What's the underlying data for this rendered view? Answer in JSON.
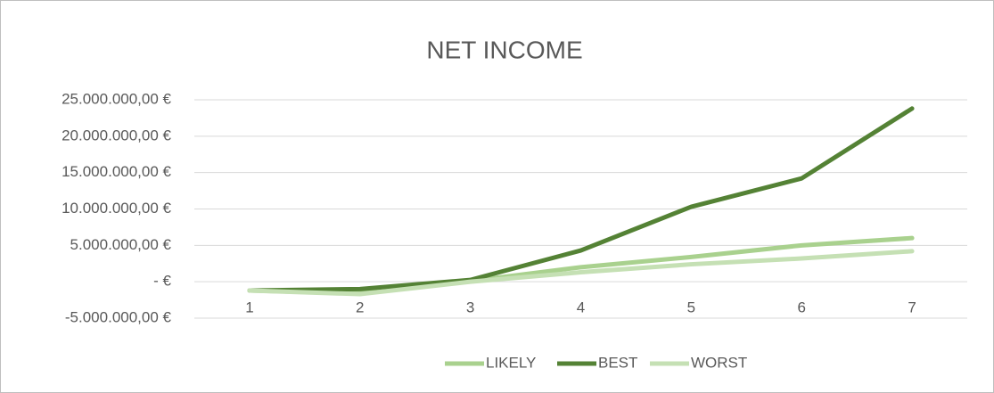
{
  "chart_data": {
    "type": "line",
    "title": "NET INCOME",
    "categories": [
      "1",
      "2",
      "3",
      "4",
      "5",
      "6",
      "7"
    ],
    "series": [
      {
        "name": "LIKELY",
        "color": "#a9d18e",
        "values": [
          -1200000,
          -1600000,
          100000,
          2000000,
          3400000,
          5000000,
          6000000
        ]
      },
      {
        "name": "BEST",
        "color": "#548235",
        "values": [
          -1200000,
          -1000000,
          250000,
          4300000,
          10300000,
          14200000,
          23800000
        ]
      },
      {
        "name": "WORST",
        "color": "#c5e0b4",
        "values": [
          -1200000,
          -1700000,
          0,
          1300000,
          2400000,
          3200000,
          4200000
        ]
      }
    ],
    "ylim": [
      -5000000,
      25000000
    ],
    "yticks": [
      {
        "value": -5000000,
        "label": "-5.000.000,00 €"
      },
      {
        "value": 0,
        "label": "-   €"
      },
      {
        "value": 5000000,
        "label": "5.000.000,00 €"
      },
      {
        "value": 10000000,
        "label": "10.000.000,00 €"
      },
      {
        "value": 15000000,
        "label": "15.000.000,00 €"
      },
      {
        "value": 20000000,
        "label": "20.000.000,00 €"
      },
      {
        "value": 25000000,
        "label": "25.000.000,00 €"
      }
    ],
    "grid": true,
    "legend": "bottom"
  }
}
